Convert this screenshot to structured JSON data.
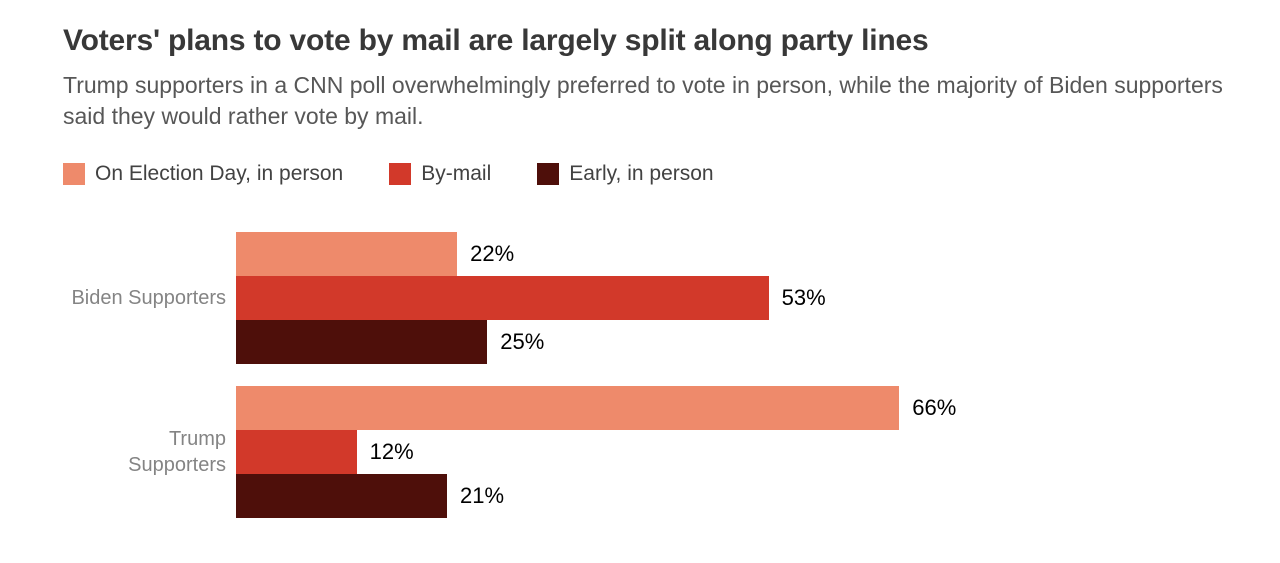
{
  "title": "Voters' plans to vote by mail are largely split along party lines",
  "subtitle": "Trump supporters in a CNN poll overwhelmingly preferred to vote in person, while the majority of Biden supporters said they would rather vote by mail.",
  "chart_data": {
    "type": "bar",
    "orientation": "horizontal",
    "title": "Voters' plans to vote by mail are largely split along party lines",
    "xlabel": "",
    "ylabel": "",
    "xlim": [
      0,
      100
    ],
    "value_suffix": "%",
    "grid": false,
    "legend_position": "top",
    "categories": [
      "Biden Supporters",
      "Trump Supporters"
    ],
    "categories_display": [
      "Biden Supporters",
      "Trump\nSupporters"
    ],
    "series": [
      {
        "name": "On Election Day, in person",
        "color": "#ee8a6b",
        "values": [
          22,
          66
        ],
        "labels": [
          "22%",
          "66%"
        ]
      },
      {
        "name": "By-mail",
        "color": "#d2392a",
        "values": [
          53,
          12
        ],
        "labels": [
          "53%",
          "12%"
        ]
      },
      {
        "name": "Early, in person",
        "color": "#4e0f0a",
        "values": [
          25,
          21
        ],
        "labels": [
          "25%",
          "21%"
        ]
      }
    ]
  }
}
